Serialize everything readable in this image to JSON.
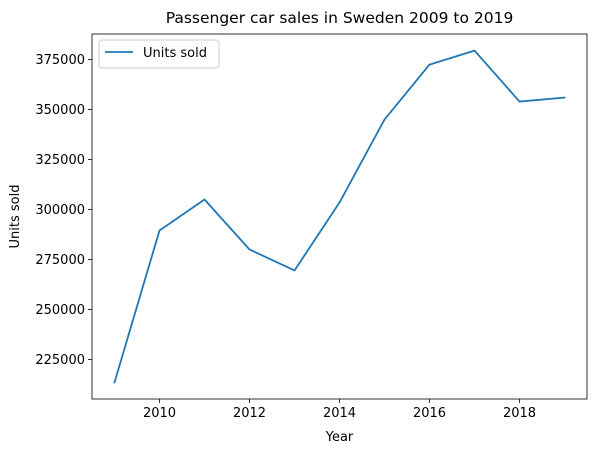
{
  "chart_data": {
    "type": "line",
    "title": "Passenger car sales in Sweden 2009 to 2019",
    "xlabel": "Year",
    "ylabel": "Units sold",
    "x": [
      2009,
      2010,
      2011,
      2012,
      2013,
      2014,
      2015,
      2016,
      2017,
      2018,
      2019
    ],
    "series": [
      {
        "name": "Units sold",
        "color": "#1f77b4",
        "values": [
          213500,
          289500,
          305000,
          280000,
          269500,
          303500,
          345000,
          372500,
          379500,
          354000,
          356000
        ]
      }
    ],
    "xlim": [
      2008.5,
      2019.5
    ],
    "ylim": [
      205200,
      387800
    ],
    "xticks": [
      2010,
      2012,
      2014,
      2016,
      2018
    ],
    "yticks": [
      225000,
      250000,
      275000,
      300000,
      325000,
      350000,
      375000
    ],
    "legend": "top-left",
    "grid": false
  }
}
